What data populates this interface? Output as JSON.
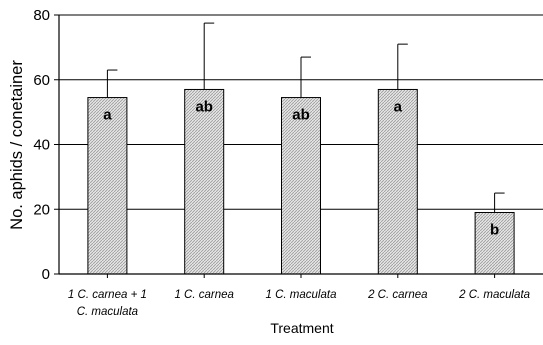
{
  "chart_data": {
    "type": "bar",
    "title": "",
    "xlabel": "Treatment",
    "ylabel": "No. aphids / conetainer",
    "ylim": [
      0,
      80
    ],
    "yticks": [
      0,
      20,
      40,
      60,
      80
    ],
    "grid": true,
    "categories": [
      [
        "1 C. carnea + 1",
        "C. maculata"
      ],
      [
        "1 C. carnea"
      ],
      [
        "1 C. maculata"
      ],
      [
        "2 C. carnea"
      ],
      [
        "2 C. maculata"
      ]
    ],
    "values": [
      54.5,
      57,
      54.5,
      57,
      19
    ],
    "error_upper": [
      63,
      77.5,
      67,
      71,
      25
    ],
    "significance_labels": [
      "a",
      "ab",
      "ab",
      "a",
      "b"
    ],
    "colors": {
      "bar_fill": "#dcdcdc",
      "bar_hatch": "#9a9a9a",
      "line": "#000000"
    }
  }
}
